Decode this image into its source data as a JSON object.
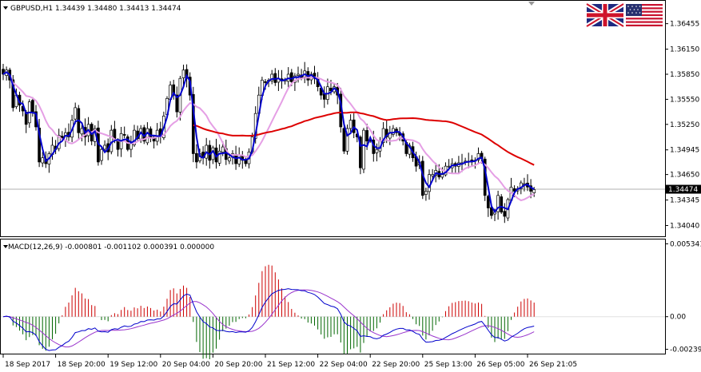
{
  "chart_data": [
    {
      "type": "candlestick",
      "symbol": "GBPUSD",
      "timeframe": "H1",
      "header": "GBPUSD,H1  1.34439 1.34480 1.34413 1.34474",
      "ohlc_last": {
        "open": 1.34439,
        "high": 1.3448,
        "low": 1.34413,
        "close": 1.34474
      },
      "current_price": 1.34474,
      "current_price_label": "1.34474",
      "ylim": [
        1.3393,
        1.367
      ],
      "y_ticks": [
        {
          "value": 1.36455,
          "label": "1.36455"
        },
        {
          "value": 1.3615,
          "label": "1.36150"
        },
        {
          "value": 1.3585,
          "label": "1.35850"
        },
        {
          "value": 1.3555,
          "label": "1.35550"
        },
        {
          "value": 1.3525,
          "label": "1.35250"
        },
        {
          "value": 1.34945,
          "label": "1.34945"
        },
        {
          "value": 1.3465,
          "label": "1.34650"
        },
        {
          "value": 1.34345,
          "label": "1.34345"
        },
        {
          "value": 1.3404,
          "label": "1.34040"
        }
      ],
      "x_ticks": [
        {
          "bar": 0,
          "label": "18 Sep 2017"
        },
        {
          "bar": 16,
          "label": "18 Sep 20:00"
        },
        {
          "bar": 32,
          "label": "19 Sep 12:00"
        },
        {
          "bar": 48,
          "label": "20 Sep 04:00"
        },
        {
          "bar": 64,
          "label": "20 Sep 20:00"
        },
        {
          "bar": 80,
          "label": "21 Sep 12:00"
        },
        {
          "bar": 96,
          "label": "22 Sep 04:00"
        },
        {
          "bar": 112,
          "label": "22 Sep 20:00"
        },
        {
          "bar": 128,
          "label": "25 Sep 13:00"
        },
        {
          "bar": 144,
          "label": "26 Sep 05:00"
        },
        {
          "bar": 160,
          "label": "26 Sep 21:05"
        }
      ],
      "closes": [
        1.3585,
        1.359,
        1.3578,
        1.3545,
        1.356,
        1.3548,
        1.3541,
        1.3525,
        1.3552,
        1.354,
        1.3522,
        1.348,
        1.3485,
        1.3478,
        1.349,
        1.35,
        1.3495,
        1.3512,
        1.3508,
        1.3515,
        1.351,
        1.353,
        1.3545,
        1.3515,
        1.352,
        1.351,
        1.3525,
        1.3505,
        1.352,
        1.348,
        1.3495,
        1.35,
        1.3492,
        1.3518,
        1.3507,
        1.3495,
        1.3514,
        1.3512,
        1.3495,
        1.3502,
        1.3518,
        1.3508,
        1.352,
        1.3505,
        1.352,
        1.351,
        1.3505,
        1.3518,
        1.351,
        1.3535,
        1.3556,
        1.3572,
        1.356,
        1.354,
        1.358,
        1.359,
        1.358,
        1.356,
        1.349,
        1.348,
        1.349,
        1.3485,
        1.35,
        1.3482,
        1.3497,
        1.348,
        1.3493,
        1.3498,
        1.3483,
        1.3485,
        1.349,
        1.3478,
        1.3488,
        1.3482,
        1.3478,
        1.3492,
        1.351,
        1.3538,
        1.356,
        1.3578,
        1.3575,
        1.3578,
        1.3585,
        1.3575,
        1.358,
        1.3577,
        1.3578,
        1.3585,
        1.3576,
        1.3583,
        1.3585,
        1.3581,
        1.3589,
        1.3578,
        1.3585,
        1.358,
        1.357,
        1.356,
        1.3555,
        1.357,
        1.3565,
        1.357,
        1.356,
        1.3522,
        1.3493,
        1.352,
        1.353,
        1.3515,
        1.351,
        1.3473,
        1.3518,
        1.3505,
        1.3505,
        1.349,
        1.3495,
        1.3505,
        1.352,
        1.351,
        1.3515,
        1.352,
        1.3515,
        1.3512,
        1.3505,
        1.349,
        1.35,
        1.3485,
        1.3475,
        1.348,
        1.344,
        1.3445,
        1.3465,
        1.3465,
        1.347,
        1.3462,
        1.3465,
        1.3475,
        1.3475,
        1.3478,
        1.3475,
        1.3479,
        1.3479,
        1.3481,
        1.3481,
        1.348,
        1.3482,
        1.349,
        1.3484,
        1.344,
        1.3425,
        1.3416,
        1.342,
        1.344,
        1.342,
        1.3415,
        1.3435,
        1.345,
        1.3445,
        1.3448,
        1.3455,
        1.3454,
        1.345,
        1.3445,
        1.3447
      ],
      "moving_averages": [
        {
          "name": "MA fast",
          "color": "#0000cc"
        },
        {
          "name": "MA medium",
          "color": "#e59fe5"
        },
        {
          "name": "MA slow",
          "color": "#dd0000"
        }
      ],
      "colors": {
        "candle": "#000000",
        "background": "#ffffff",
        "grid": "none"
      }
    },
    {
      "type": "macd",
      "header": "MACD(12,26,9) -0.000801 -0.001102 0.000391 0.000000",
      "params": "12,26,9",
      "values": {
        "macd": -0.000801,
        "signal": -0.001102,
        "histogram": 0.000391,
        "extra": 0.0
      },
      "ylim": [
        -0.00265,
        0.0056
      ],
      "y_ticks": [
        {
          "value": 0.005341,
          "label": "0.005341"
        },
        {
          "value": 0.0,
          "label": "0.00"
        },
        {
          "value": -0.002391,
          "label": "-0.002391"
        }
      ],
      "colors": {
        "macd_line": "#0000cc",
        "signal_line": "#9933cc",
        "hist_positive": "#cc0000",
        "hist_negative": "#006600"
      }
    }
  ],
  "flags": [
    {
      "name": "uk-flag-icon",
      "colors": {
        "blue": "#1f2a80",
        "red": "#cf142b",
        "white": "#ffffff"
      }
    },
    {
      "name": "us-flag-icon",
      "colors": {
        "blue": "#27306f",
        "red": "#c8102e",
        "white": "#ffffff"
      }
    }
  ]
}
